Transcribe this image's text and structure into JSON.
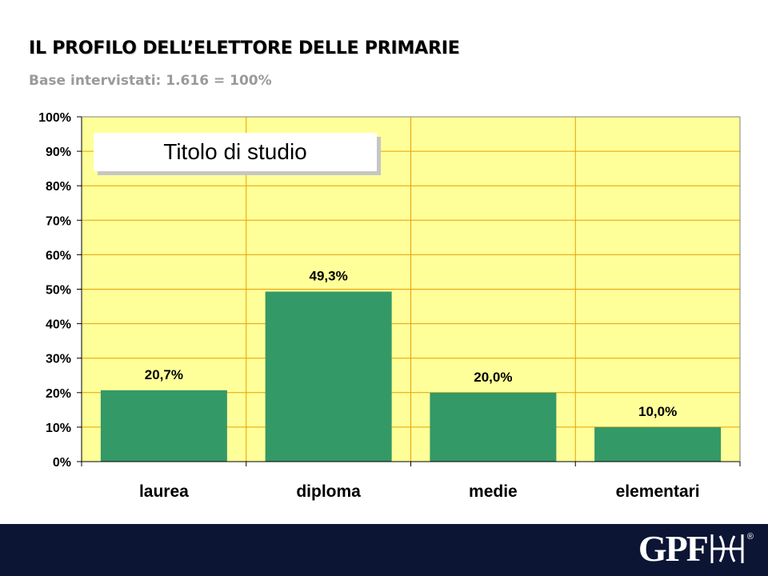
{
  "header": {
    "title": "IL PROFILO DELL’ELETTORE DELLE PRIMARIE",
    "subtitle": "Base intervistati: 1.616 = 100%"
  },
  "chart_data": {
    "type": "bar",
    "title": "Titolo di studio",
    "categories": [
      "laurea",
      "diploma",
      "medie",
      "elementari"
    ],
    "values": [
      20.7,
      49.3,
      20.0,
      10.0
    ],
    "data_labels": [
      "20,7%",
      "49,3%",
      "20,0%",
      "10,0%"
    ],
    "ylim": [
      0,
      100
    ],
    "y_ticks": [
      "0%",
      "10%",
      "20%",
      "30%",
      "40%",
      "50%",
      "60%",
      "70%",
      "80%",
      "90%",
      "100%"
    ],
    "grid": true,
    "colors": {
      "bar": "#339966",
      "plot_background": "#ffff99",
      "grid": "#e8a000"
    }
  },
  "footer": {
    "logo_text": "GPF",
    "logo_registered": "®",
    "background": "#0d1535"
  }
}
